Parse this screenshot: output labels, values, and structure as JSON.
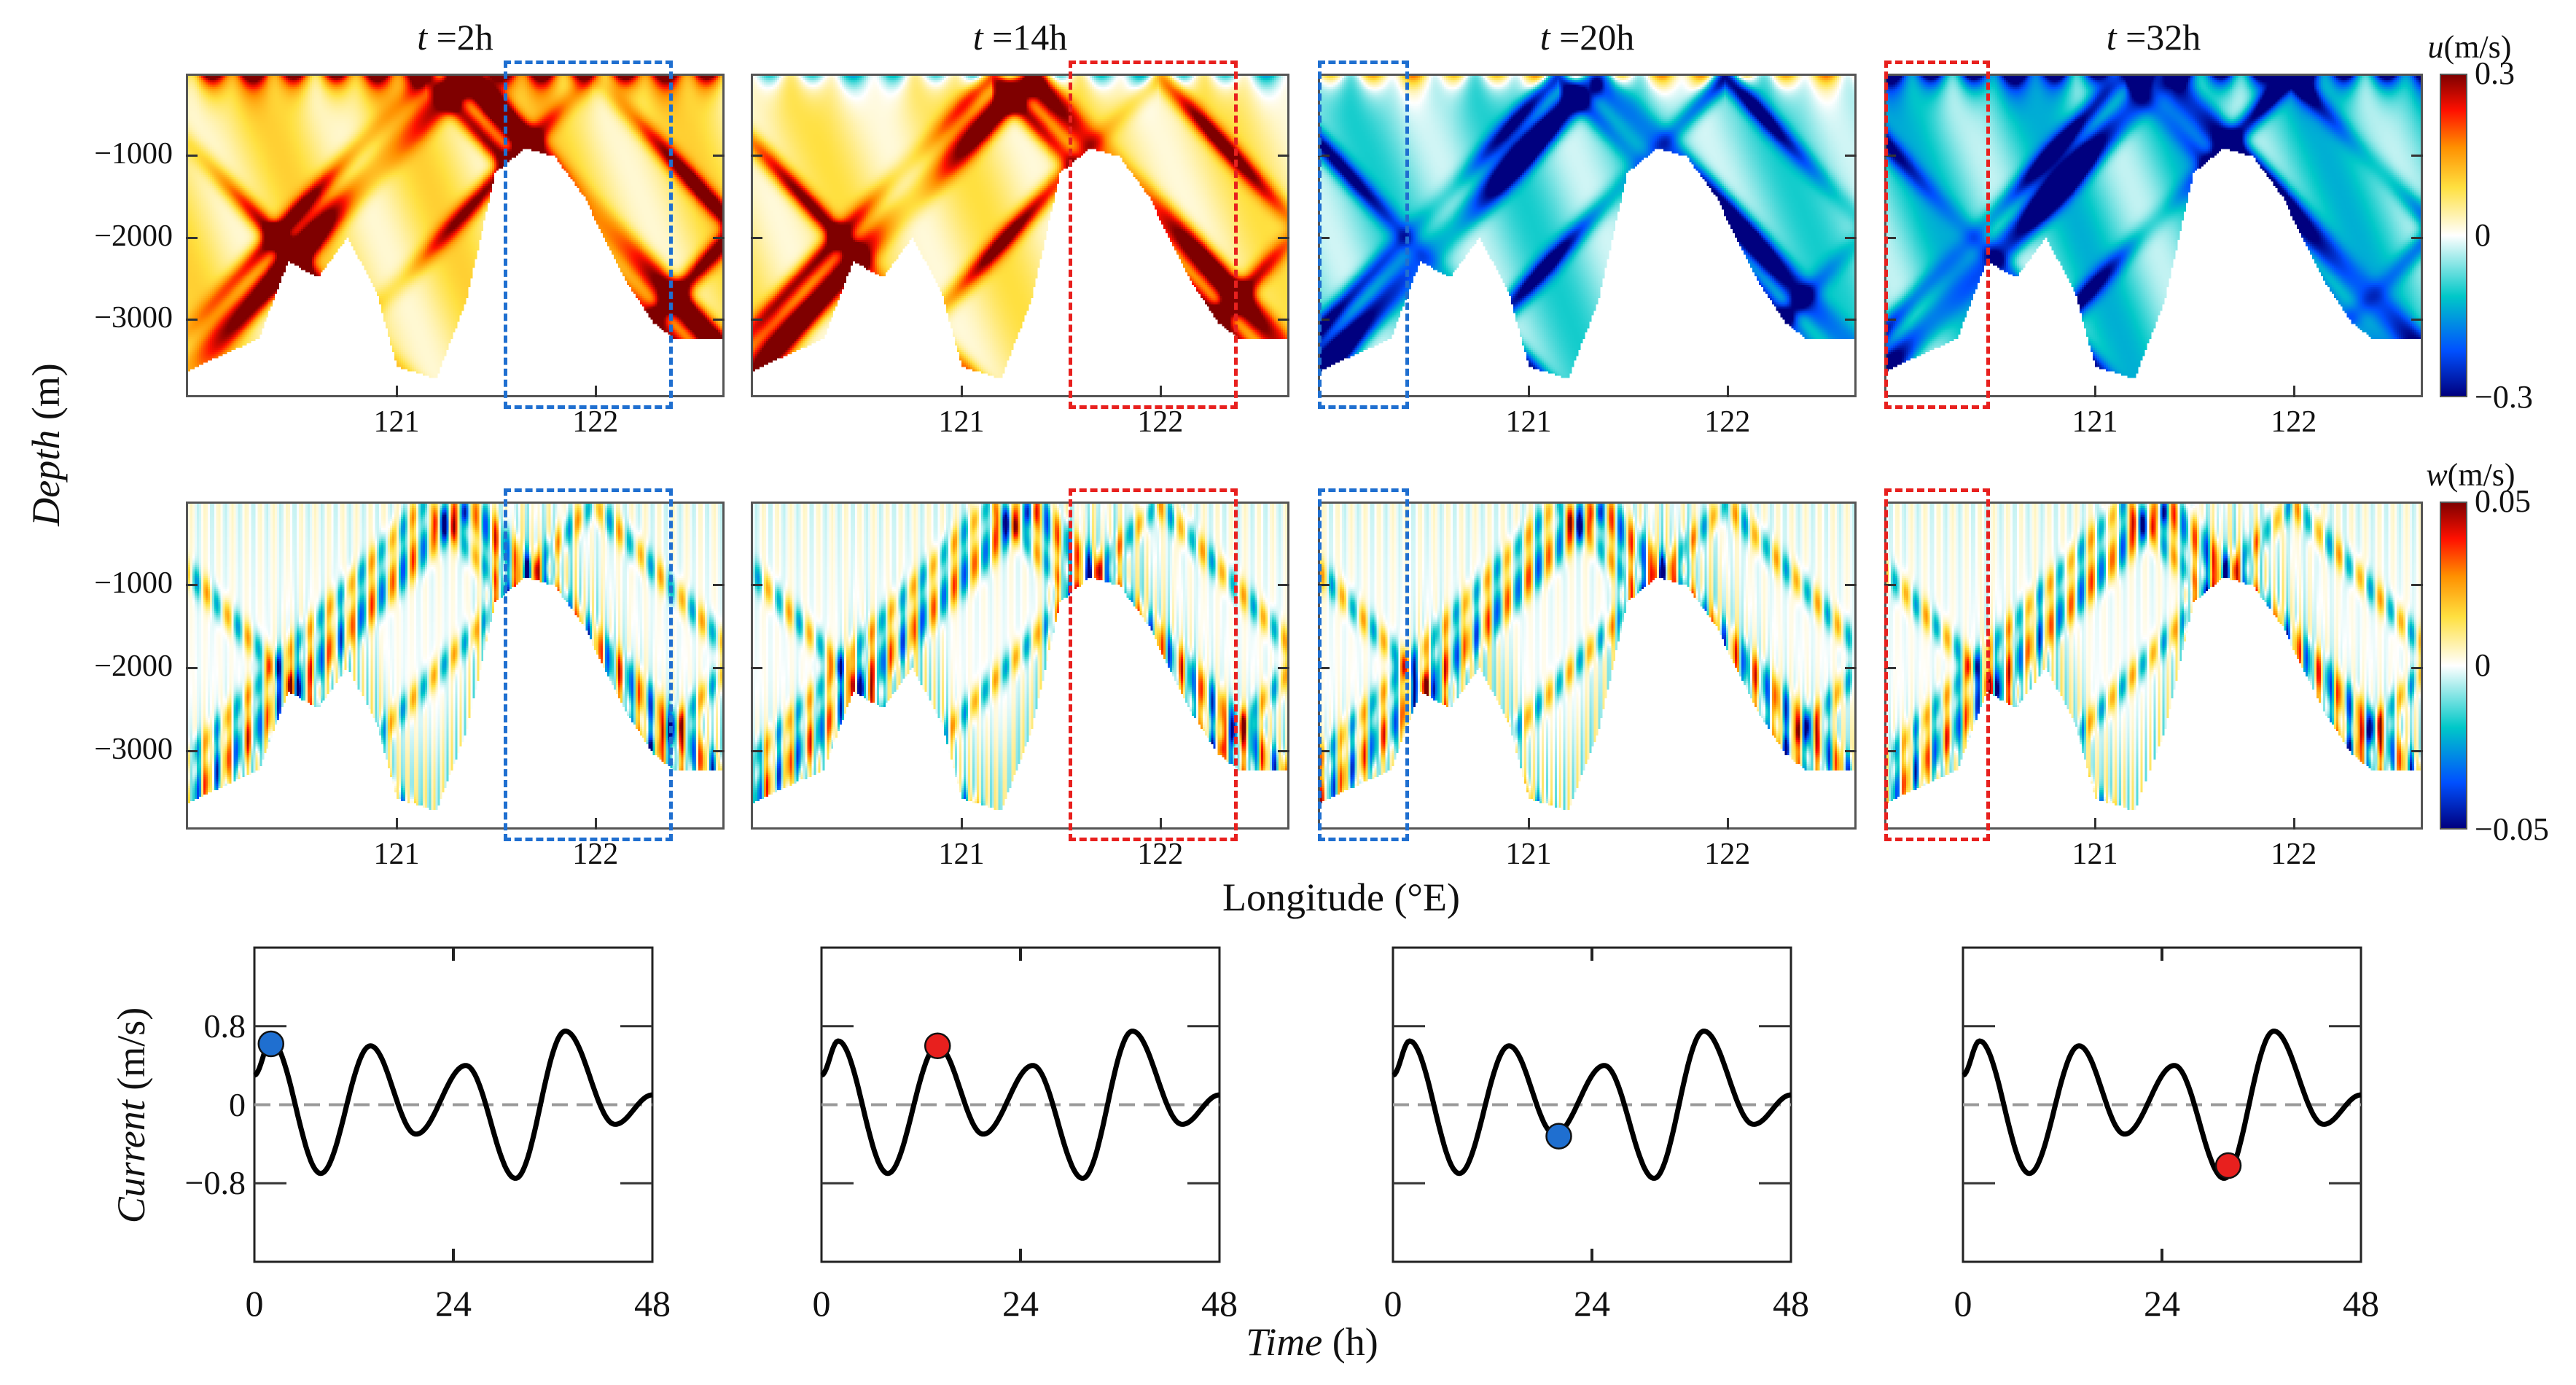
{
  "figure": {
    "depth_label": "Depth",
    "depth_unit": " (m)",
    "longitude_label": "Longitude (°E)",
    "current_label": "Current",
    "current_unit": " (m/s)",
    "time_label": "Time",
    "time_unit": " (h)"
  },
  "chart_data": {
    "type": "heatmap",
    "times": [
      {
        "var": "t",
        "value": " =2h",
        "t": 2,
        "highlight_color": "#1f6fd0",
        "highlight_lon": [
          121.54,
          122.39
        ]
      },
      {
        "var": "t",
        "value": " =14h",
        "t": 14,
        "highlight_color": "#e8201e",
        "highlight_lon": [
          121.54,
          122.39
        ]
      },
      {
        "var": "t",
        "value": " =20h",
        "t": 20,
        "highlight_color": "#1f6fd0",
        "highlight_lon": [
          119.94,
          120.4
        ]
      },
      {
        "var": "t",
        "value": " =32h",
        "t": 32,
        "highlight_color": "#e8201e",
        "highlight_lon": [
          119.94,
          120.47
        ]
      }
    ],
    "u_field": {
      "var": "u",
      "unit": "(m/s)",
      "clim": [
        -0.3,
        0.3
      ],
      "tick_labels": [
        "0.3",
        "0",
        "−0.3"
      ]
    },
    "w_field": {
      "var": "w",
      "unit": "(m/s)",
      "clim": [
        -0.05,
        0.05
      ],
      "tick_labels": [
        "0.05",
        "0",
        "−0.05"
      ]
    },
    "colormap": [
      "#00007f",
      "#0050ff",
      "#00c8c8",
      "#ffffff",
      "#ffe040",
      "#ff9000",
      "#ff1000",
      "#7f0000"
    ],
    "xlim": [
      119.94,
      122.65
    ],
    "xticks": [
      121,
      122
    ],
    "xtick_labels": [
      "121",
      "122"
    ],
    "ylim": [
      -3950,
      0
    ],
    "yticks": [
      -1000,
      -2000,
      -3000
    ],
    "ytick_labels": [
      "−1000",
      "−2000",
      "−3000"
    ],
    "bathymetry": [
      [
        119.94,
        -3650
      ],
      [
        120.3,
        -3250
      ],
      [
        120.45,
        -2300
      ],
      [
        120.6,
        -2500
      ],
      [
        120.75,
        -2000
      ],
      [
        120.9,
        -2700
      ],
      [
        121.0,
        -3600
      ],
      [
        121.2,
        -3750
      ],
      [
        121.35,
        -2800
      ],
      [
        121.5,
        -1200
      ],
      [
        121.65,
        -900
      ],
      [
        121.8,
        -1000
      ],
      [
        121.95,
        -1500
      ],
      [
        122.15,
        -2500
      ],
      [
        122.3,
        -3050
      ],
      [
        122.4,
        -3250
      ],
      [
        122.65,
        -3250
      ]
    ],
    "current": {
      "type": "line",
      "x": [
        0,
        2,
        8,
        14,
        19.5,
        25.5,
        31.5,
        37.5,
        43.5,
        48
      ],
      "y": [
        0.3,
        0.65,
        -0.7,
        0.6,
        -0.3,
        0.4,
        -0.75,
        0.75,
        -0.2,
        0.1
      ],
      "xlim": [
        0,
        48
      ],
      "ylim": [
        -1.6,
        1.6
      ],
      "xticks": [
        0,
        24,
        48
      ],
      "xtick_labels": [
        "0",
        "24",
        "48"
      ],
      "yticks": [
        0.8,
        0,
        -0.8
      ],
      "ytick_labels": [
        "0.8",
        "0",
        "−0.8"
      ],
      "markers": [
        {
          "t": 2,
          "value": 0.62,
          "color": "#1f6fd0"
        },
        {
          "t": 14,
          "value": 0.6,
          "color": "#e8201e"
        },
        {
          "t": 20,
          "value": -0.32,
          "color": "#1f6fd0"
        },
        {
          "t": 32,
          "value": -0.62,
          "color": "#e8201e"
        }
      ]
    }
  }
}
